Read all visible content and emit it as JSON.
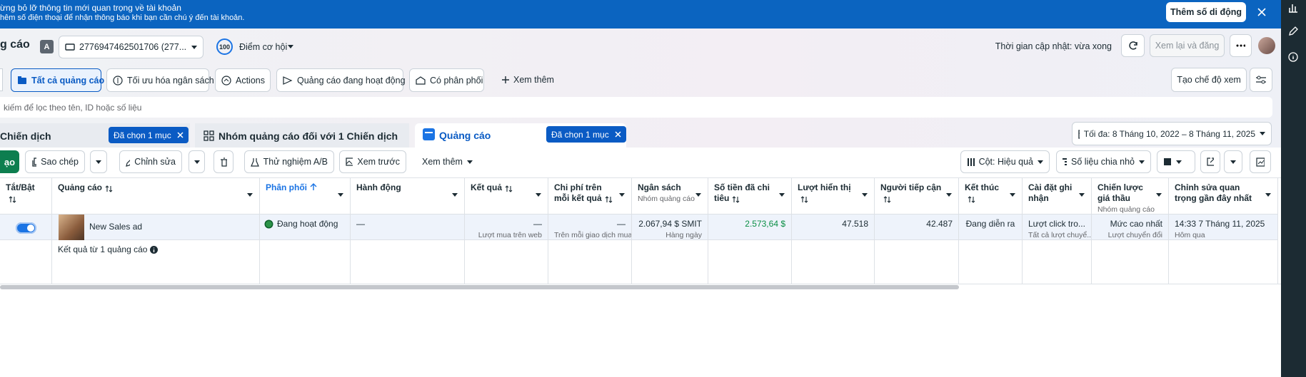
{
  "banner": {
    "title": "ừng bỏ lỡ thông tin mới quan trọng về tài khoản",
    "text": "hêm số điện thoại để nhận thông báo khi bạn cần chú ý đến tài khoản.",
    "button": "Thêm số di động"
  },
  "account_bar": {
    "page_title": "g cáo",
    "account_badge": "A",
    "account": "2776947462501706 (277...",
    "score": "100",
    "score_label": "Điểm cơ hội",
    "updated": "Thời gian cập nhật: vừa xong",
    "review_button": "Xem lại và đăng"
  },
  "view_tabs": {
    "tabs": [
      "Tất cả quảng cáo",
      "Tối ưu hóa ngân sách",
      "Actions",
      "Quảng cáo đang hoạt động",
      "Có phân phối"
    ],
    "more": "Xem thêm",
    "create_view": "Tạo chế độ xem"
  },
  "search": {
    "placeholder": "kiếm để lọc theo tên, ID hoặc số liệu"
  },
  "level_tabs": {
    "campaigns": "Chiến dịch",
    "campaigns_selected": "Đã chọn 1 mục",
    "ad_sets": "Nhóm quảng cáo đối với 1 Chiến dịch",
    "ads": "Quảng cáo",
    "ads_selected": "Đã chọn 1 mục",
    "date_range": "Tối đa: 8 Tháng 10, 2022 – 8 Tháng 11, 2025"
  },
  "toolbar": {
    "create": "ạo",
    "duplicate": "Sao chép",
    "edit": "Chỉnh sửa",
    "ab_test": "Thử nghiệm A/B",
    "preview": "Xem trước",
    "more": "Xem thêm",
    "columns": "Cột: Hiệu quả",
    "breakdown": "Số liệu chia nhỏ"
  },
  "table": {
    "columns": [
      {
        "header": "Tắt/Bật"
      },
      {
        "header": "Quảng cáo",
        "cell": "New Sales ad"
      },
      {
        "header": "Phân phối",
        "cell": "Đang hoạt động"
      },
      {
        "header": "Hành động",
        "cell": "—"
      },
      {
        "header": "Kết quả",
        "cell": "—",
        "cell_sub": "Lượt mua trên web"
      },
      {
        "header": "Chi phí trên mỗi kết quả",
        "cell": "—",
        "cell_sub": "Trên mỗi giao dịch mua"
      },
      {
        "header": "Ngân sách",
        "header_sub": "Nhóm quảng cáo",
        "cell": "2.067,94 $ SMIT",
        "cell_sub": "Hàng ngày"
      },
      {
        "header": "Số tiền đã chi tiêu",
        "cell": "2.573,64 $"
      },
      {
        "header": "Lượt hiển thị",
        "cell": "47.518"
      },
      {
        "header": "Người tiếp cận",
        "cell": "42.487"
      },
      {
        "header": "Kết thúc",
        "cell": "Đang diễn ra"
      },
      {
        "header": "Cài đặt ghi nhận",
        "cell": "Lượt click tro...",
        "cell_sub": "Tất cả lượt chuyể..."
      },
      {
        "header": "Chiến lược giá thầu",
        "header_sub": "Nhóm quảng cáo",
        "cell": "Mức cao nhất",
        "cell_sub": "Lượt chuyển đổi"
      },
      {
        "header": "Chỉnh sửa quan trọng gần đây nhất",
        "cell": "14:33 7 Tháng 11, 2025",
        "cell_sub": "Hôm qua"
      }
    ],
    "summary": "Kết quả từ 1 quảng cáo"
  }
}
